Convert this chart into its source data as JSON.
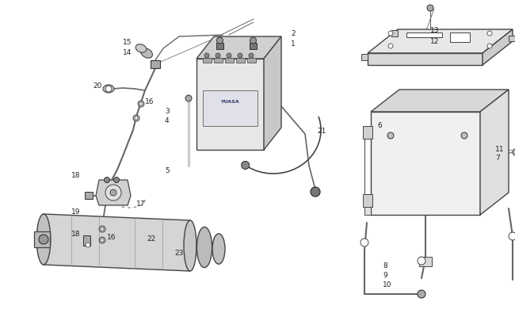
{
  "bg_color": "#ffffff",
  "lc": "#444444",
  "lc2": "#666666",
  "fc_light": "#f0f0f0",
  "fc_mid": "#d8d8d8",
  "fc_dark": "#b8b8b8",
  "figsize": [
    6.5,
    4.06
  ],
  "dpi": 100
}
